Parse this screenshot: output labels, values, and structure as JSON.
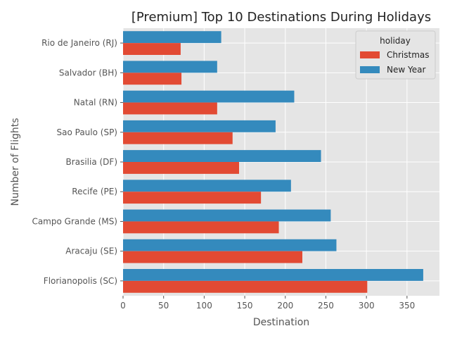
{
  "chart_data": {
    "type": "bar",
    "orientation": "horizontal",
    "title": "[Premium] Top 10 Destinations During Holidays",
    "xlabel": "Destination",
    "ylabel": "Number of Flights",
    "xlim": [
      0,
      390
    ],
    "xticks": [
      "0",
      "50",
      "100",
      "150",
      "200",
      "250",
      "300",
      "350"
    ],
    "grid": true,
    "legend": {
      "title": "holiday",
      "placement": "top-right"
    },
    "categories": [
      "Rio de Janeiro (RJ)",
      "Salvador (BH)",
      "Natal (RN)",
      "Sao Paulo (SP)",
      "Brasilia (DF)",
      "Recife (PE)",
      "Campo Grande (MS)",
      "Aracaju (SE)",
      "Florianopolis (SC)"
    ],
    "series": [
      {
        "name": "Christmas",
        "color": "#e24a33",
        "values": [
          71,
          72,
          116,
          135,
          143,
          170,
          192,
          221,
          301
        ]
      },
      {
        "name": "New Year",
        "color": "#348abd",
        "values": [
          121,
          116,
          211,
          188,
          244,
          207,
          256,
          263,
          370
        ]
      }
    ]
  }
}
